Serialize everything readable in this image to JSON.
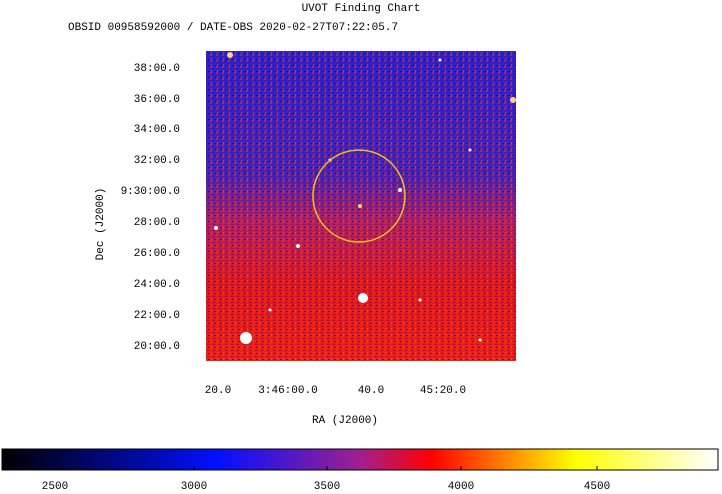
{
  "title": "UVOT Finding Chart",
  "subtitle": "OBSID 00958592000 / DATE-OBS 2020-02-27T07:22:05.7",
  "x_axis": {
    "label": "RA (J2000)",
    "ticks": [
      "20.0",
      "3:46:00.0",
      "40.0",
      "45:20.0"
    ]
  },
  "y_axis": {
    "label": "Dec (J2000)",
    "ticks": [
      "38:00.0",
      "36:00.0",
      "34:00.0",
      "32:00.0",
      "9:30:00.0",
      "28:00.0",
      "26:00.0",
      "24:00.0",
      "22:00.0",
      "20:00.0"
    ]
  },
  "colorbar": {
    "ticks": [
      2500,
      3000,
      3500,
      4000,
      4500
    ]
  }
}
